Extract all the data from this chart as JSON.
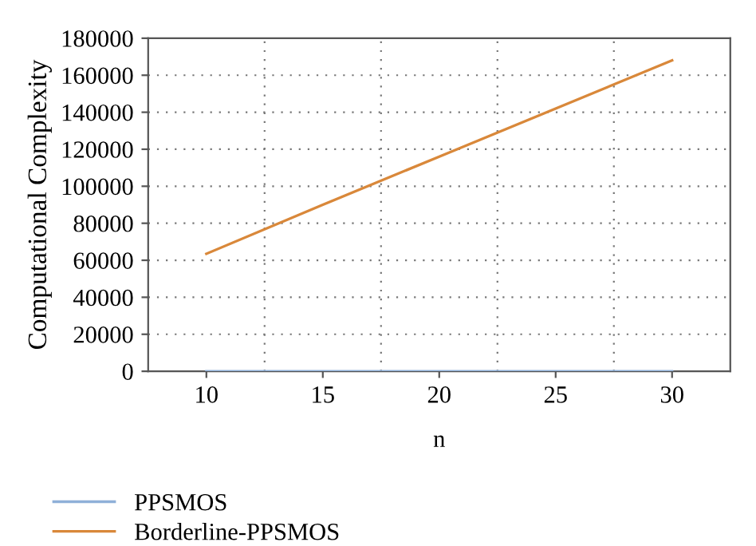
{
  "chart_data": {
    "type": "line",
    "xlabel": "n",
    "ylabel": "Computational Complexity",
    "categories": [
      "10",
      "15",
      "20",
      "25",
      "30"
    ],
    "series": [
      {
        "name": "PPSMOS",
        "color": "#8fb0d8",
        "values": [
          0,
          0,
          0,
          0,
          0
        ]
      },
      {
        "name": "Borderline-PPSMOS",
        "color": "#d9883a",
        "values": [
          63500,
          90000,
          116000,
          142000,
          168000
        ]
      }
    ],
    "ylim": [
      0,
      180000
    ],
    "yticks": [
      0,
      20000,
      40000,
      60000,
      80000,
      100000,
      120000,
      140000,
      160000,
      180000
    ],
    "grid": true,
    "legend": "bottom left",
    "line_style": "solid",
    "marker": "none"
  }
}
